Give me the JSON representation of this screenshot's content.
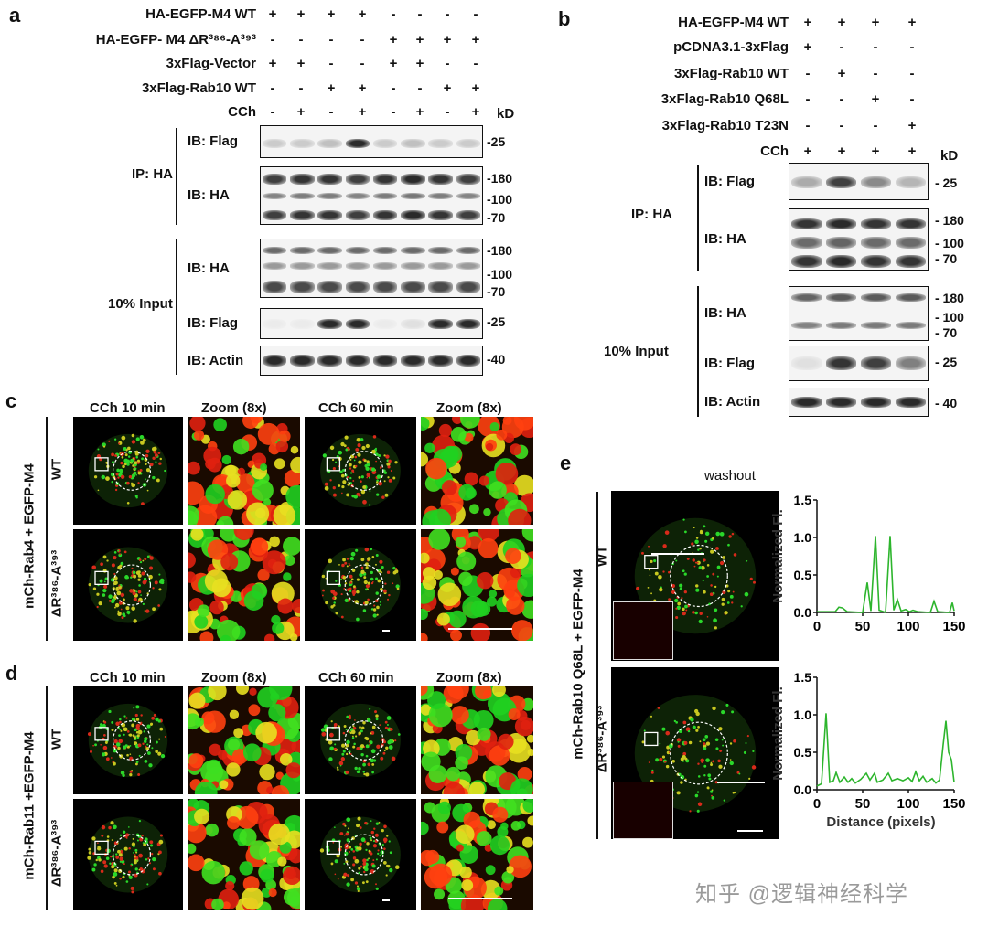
{
  "panel_a": {
    "label": "a",
    "rows": [
      {
        "label": "HA-EGFP-M4 WT",
        "signs": [
          "+",
          "+",
          "+",
          "+",
          "-",
          "-",
          "-",
          "-"
        ]
      },
      {
        "label": "HA-EGFP- M4 ΔR³⁸⁶-A³⁹³",
        "signs": [
          "-",
          "-",
          "-",
          "-",
          "+",
          "+",
          "+",
          "+"
        ]
      },
      {
        "label": "3xFlag-Vector",
        "signs": [
          "+",
          "+",
          "-",
          "-",
          "+",
          "+",
          "-",
          "-"
        ]
      },
      {
        "label": "3xFlag-Rab10 WT",
        "signs": [
          "-",
          "-",
          "+",
          "+",
          "-",
          "-",
          "+",
          "+"
        ]
      },
      {
        "label": "CCh",
        "signs": [
          "-",
          "+",
          "-",
          "+",
          "-",
          "+",
          "-",
          "+"
        ]
      }
    ],
    "kd_label": "kD",
    "group_ip": "IP: HA",
    "group_input": "10% Input",
    "blots": [
      {
        "label": "IB: Flag",
        "markers": [
          "-25"
        ],
        "band_intensity": [
          0.15,
          0.15,
          0.2,
          0.9,
          0.15,
          0.2,
          0.15,
          0.15
        ]
      },
      {
        "label": "IB: HA",
        "markers": [
          "-180",
          "-100",
          "-70"
        ],
        "band_intensity": [
          0.8,
          0.85,
          0.85,
          0.8,
          0.85,
          0.9,
          0.85,
          0.8
        ]
      },
      {
        "label": "IB: HA",
        "markers": [
          "-180",
          "-100",
          "-70"
        ],
        "band_intensity": [
          0.75,
          0.75,
          0.75,
          0.75,
          0.75,
          0.75,
          0.75,
          0.75
        ]
      },
      {
        "label": "IB: Flag",
        "markers": [
          "-25"
        ],
        "band_intensity": [
          0,
          0,
          0.9,
          0.9,
          0,
          0.05,
          0.9,
          0.9
        ]
      },
      {
        "label": "IB: Actin",
        "markers": [
          "-40"
        ],
        "band_intensity": [
          0.9,
          0.9,
          0.9,
          0.9,
          0.9,
          0.9,
          0.9,
          0.9
        ]
      }
    ]
  },
  "panel_b": {
    "label": "b",
    "rows": [
      {
        "label": "HA-EGFP-M4 WT",
        "signs": [
          "+",
          "+",
          "+",
          "+"
        ]
      },
      {
        "label": "pCDNA3.1-3xFlag",
        "signs": [
          "+",
          "-",
          "-",
          "-"
        ]
      },
      {
        "label": "3xFlag-Rab10 WT",
        "signs": [
          "-",
          "+",
          "-",
          "-"
        ]
      },
      {
        "label": "3xFlag-Rab10 Q68L",
        "signs": [
          "-",
          "-",
          "+",
          "-"
        ]
      },
      {
        "label": "3xFlag-Rab10 T23N",
        "signs": [
          "-",
          "-",
          "-",
          "+"
        ]
      },
      {
        "label": "CCh",
        "signs": [
          "+",
          "+",
          "+",
          "+"
        ]
      }
    ],
    "kd_label": "kD",
    "group_ip": "IP: HA",
    "group_input": "10% Input",
    "blots": [
      {
        "label": "IB: Flag",
        "markers": [
          "- 25"
        ],
        "band_intensity": [
          0.3,
          0.8,
          0.45,
          0.25
        ]
      },
      {
        "label": "IB: HA",
        "markers": [
          "- 180",
          "- 100",
          "- 70"
        ],
        "band_intensity": [
          0.85,
          0.9,
          0.85,
          0.85
        ]
      },
      {
        "label": "IB: HA",
        "markers": [
          "- 180",
          "- 100",
          "- 70"
        ],
        "band_intensity": [
          0.7,
          0.75,
          0.75,
          0.75
        ]
      },
      {
        "label": "IB: Flag",
        "markers": [
          "- 25"
        ],
        "band_intensity": [
          0.05,
          0.85,
          0.8,
          0.5
        ]
      },
      {
        "label": "IB: Actin",
        "markers": [
          "- 40"
        ],
        "band_intensity": [
          0.9,
          0.9,
          0.9,
          0.9
        ]
      }
    ]
  },
  "panel_c": {
    "label": "c",
    "side_label": "mCh-Rab4 + EGFP-M4",
    "row_labels": [
      "WT",
      "ΔR³⁸⁶-A³⁹³"
    ],
    "headers": [
      "CCh 10 min",
      "Zoom (8x)",
      "CCh 60 min",
      "Zoom (8x)"
    ]
  },
  "panel_d": {
    "label": "d",
    "side_label": "mCh-Rab11 +EGFP-M4",
    "row_labels": [
      "WT",
      "ΔR³⁸⁶-A³⁹³"
    ],
    "headers": [
      "CCh 10 min",
      "Zoom (8x)",
      "CCh 60 min",
      "Zoom (8x)"
    ]
  },
  "panel_e": {
    "label": "e",
    "header": "washout",
    "side_label": "mCh-Rab10 Q68L + EGFP-M4",
    "row_labels": [
      "WT",
      "ΔR³⁸⁶-A³⁹³"
    ]
  },
  "chart_data": [
    {
      "type": "line",
      "ylabel": "Normalized Fl.",
      "xlabel": "",
      "xlim": [
        0,
        150
      ],
      "ylim": [
        0,
        1.5
      ],
      "xticks": [
        "0",
        "50",
        "100",
        "150"
      ],
      "yticks": [
        "0.0",
        "0.5",
        "1.0",
        "1.5"
      ],
      "color": "#2db52d",
      "points": [
        [
          0,
          0.01
        ],
        [
          20,
          0.01
        ],
        [
          24,
          0.07
        ],
        [
          28,
          0.06
        ],
        [
          33,
          0.01
        ],
        [
          50,
          0
        ],
        [
          55,
          0.4
        ],
        [
          59,
          0.02
        ],
        [
          64,
          1.02
        ],
        [
          68,
          0.03
        ],
        [
          75,
          0
        ],
        [
          80,
          1.02
        ],
        [
          84,
          0.03
        ],
        [
          88,
          0.17
        ],
        [
          92,
          0.02
        ],
        [
          97,
          0.04
        ],
        [
          101,
          0.01
        ],
        [
          105,
          0.03
        ],
        [
          110,
          0.01
        ],
        [
          124,
          0
        ],
        [
          128,
          0.15
        ],
        [
          132,
          0.01
        ],
        [
          145,
          0
        ],
        [
          148,
          0.13
        ],
        [
          150,
          0.02
        ]
      ]
    },
    {
      "type": "line",
      "ylabel": "Normalized Fl.",
      "xlabel": "Distance (pixels)",
      "xlim": [
        0,
        150
      ],
      "ylim": [
        0,
        1.5
      ],
      "xticks": [
        "0",
        "50",
        "100",
        "150"
      ],
      "yticks": [
        "0.0",
        "0.5",
        "1.0",
        "1.5"
      ],
      "color": "#2db52d",
      "points": [
        [
          0,
          0.05
        ],
        [
          5,
          0.08
        ],
        [
          10,
          1.02
        ],
        [
          14,
          0.1
        ],
        [
          18,
          0.12
        ],
        [
          21,
          0.23
        ],
        [
          25,
          0.1
        ],
        [
          30,
          0.17
        ],
        [
          34,
          0.1
        ],
        [
          38,
          0.15
        ],
        [
          42,
          0.09
        ],
        [
          48,
          0.14
        ],
        [
          54,
          0.22
        ],
        [
          58,
          0.13
        ],
        [
          63,
          0.22
        ],
        [
          66,
          0.1
        ],
        [
          72,
          0.13
        ],
        [
          78,
          0.22
        ],
        [
          82,
          0.12
        ],
        [
          88,
          0.15
        ],
        [
          94,
          0.12
        ],
        [
          100,
          0.16
        ],
        [
          104,
          0.11
        ],
        [
          108,
          0.24
        ],
        [
          112,
          0.12
        ],
        [
          116,
          0.18
        ],
        [
          120,
          0.1
        ],
        [
          126,
          0.15
        ],
        [
          130,
          0.09
        ],
        [
          134,
          0.13
        ],
        [
          138,
          0.6
        ],
        [
          141,
          0.92
        ],
        [
          144,
          0.5
        ],
        [
          147,
          0.4
        ],
        [
          150,
          0.1
        ]
      ]
    }
  ],
  "watermark": "知乎 @逻辑神经科学"
}
